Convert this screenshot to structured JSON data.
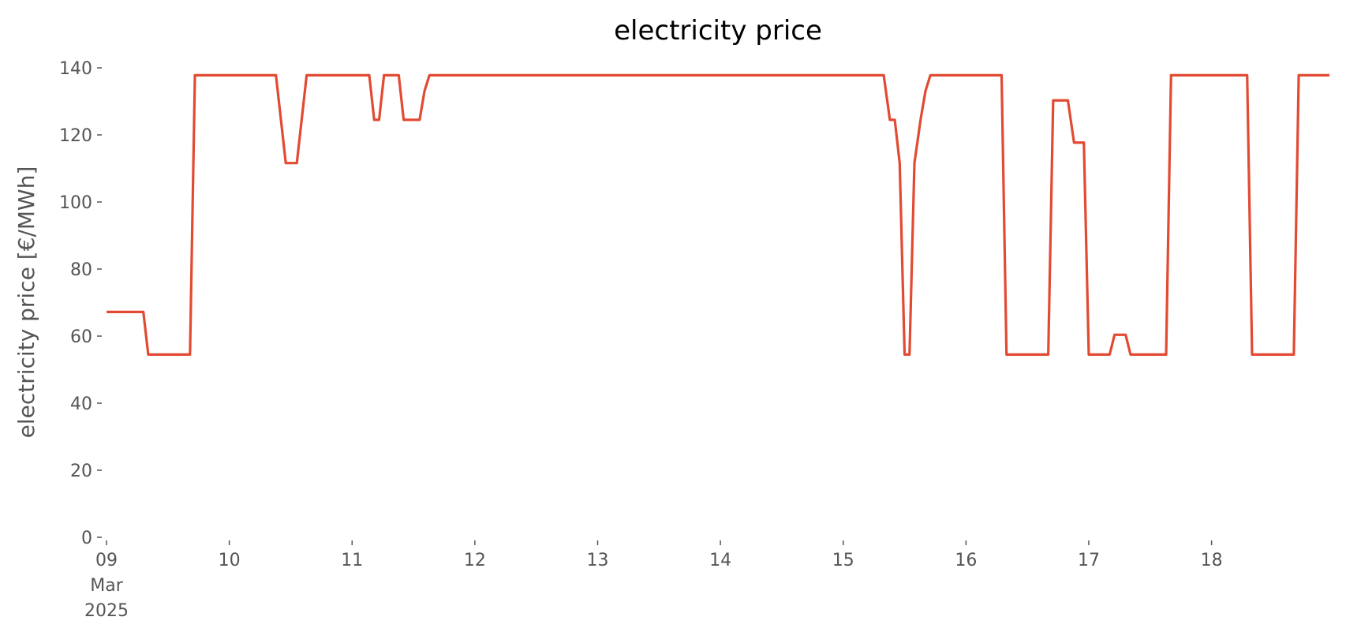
{
  "chart_data": {
    "type": "line",
    "title": "electricity price",
    "ylabel": "electricity price [€/MWh]",
    "x_month": "Mar",
    "x_year": "2025",
    "xlim": [
      9,
      18.96
    ],
    "ylim": [
      0,
      140
    ],
    "xticks": [
      {
        "value": 9,
        "label": "09"
      },
      10,
      11,
      12,
      13,
      14,
      15,
      16,
      17,
      18
    ],
    "yticks": [
      0,
      20,
      40,
      60,
      80,
      100,
      120,
      140
    ],
    "grid": false,
    "series": [
      {
        "name": "electricity price",
        "color": "#e24a33",
        "x": [
          9,
          9.3,
          9.34,
          9.68,
          9.72,
          10.38,
          10.46,
          10.55,
          10.63,
          11.14,
          11.18,
          11.22,
          11.26,
          11.38,
          11.42,
          11.55,
          11.59,
          11.63,
          15.33,
          15.38,
          15.42,
          15.46,
          15.5,
          15.54,
          15.58,
          15.63,
          15.67,
          15.71,
          16.29,
          16.33,
          16.67,
          16.71,
          16.83,
          16.88,
          16.96,
          17.0,
          17.17,
          17.21,
          17.3,
          17.34,
          17.63,
          17.67,
          18.29,
          18.33,
          18.67,
          18.71,
          18.96
        ],
        "values": [
          67.2,
          67.2,
          54.5,
          54.5,
          137.8,
          137.8,
          111.6,
          111.6,
          137.8,
          137.8,
          124.5,
          124.5,
          137.8,
          137.8,
          124.5,
          124.5,
          133.1,
          137.8,
          137.8,
          124.5,
          124.5,
          111.6,
          54.5,
          54.5,
          111.6,
          124.5,
          133.1,
          137.8,
          137.8,
          54.5,
          54.5,
          130.3,
          130.3,
          117.7,
          117.7,
          54.5,
          54.5,
          60.4,
          60.4,
          54.5,
          54.5,
          137.8,
          137.8,
          54.5,
          54.5,
          137.8,
          137.8
        ]
      }
    ]
  }
}
